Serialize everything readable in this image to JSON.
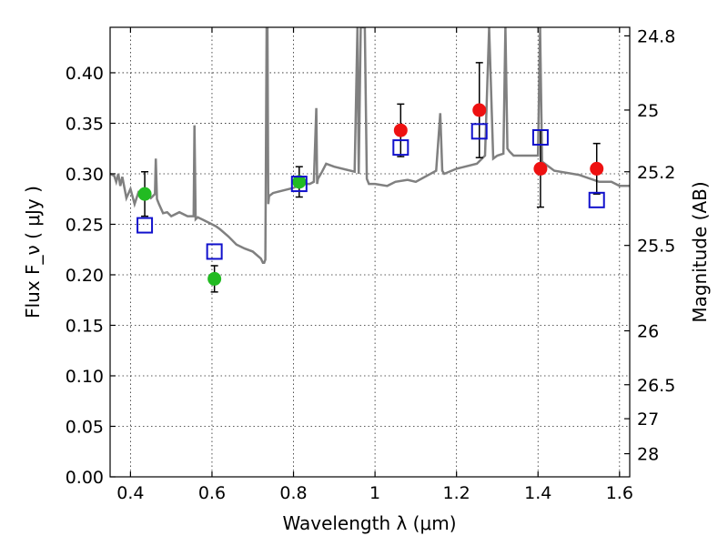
{
  "chart_data": {
    "type": "scatter",
    "xlabel": "Wavelength λ (μm)",
    "ylabel": "Flux F_ν ( μJy )",
    "y2label": "Magnitude (AB)",
    "xlim": [
      0.35,
      1.625
    ],
    "ylim": [
      0.0,
      0.445
    ],
    "grid": true,
    "x_ticks": [
      0.4,
      0.6,
      0.8,
      1.0,
      1.2,
      1.4,
      1.6
    ],
    "x_tick_labels": [
      "0.4",
      "0.6",
      "0.8",
      "1",
      "1.2",
      "1.4",
      "1.6"
    ],
    "y_ticks": [
      0.0,
      0.05,
      0.1,
      0.15,
      0.2,
      0.25,
      0.3,
      0.35,
      0.4
    ],
    "y_tick_labels": [
      "0.00",
      "0.05",
      "0.10",
      "0.15",
      "0.20",
      "0.25",
      "0.30",
      "0.35",
      "0.40"
    ],
    "mag_ticks": [
      24.8,
      25,
      25.2,
      25.5,
      26,
      26.5,
      27,
      28
    ],
    "mag_tick_labels": [
      "24.8",
      "25",
      "25.2",
      "25.5",
      "26",
      "26.5",
      "27",
      "28"
    ],
    "colors": {
      "sed": "#808080",
      "green_points": "#22bb22",
      "red_points": "#ee1111",
      "model_squares": "#1111cc",
      "errorbar": "#000000"
    },
    "series": [
      {
        "marker": "green-circle",
        "x": [
          0.435,
          0.606,
          0.814
        ],
        "y": [
          0.28,
          0.196,
          0.292
        ],
        "yerr": [
          0.022,
          0.013,
          0.015
        ]
      },
      {
        "marker": "red-circle",
        "x": [
          1.063,
          1.256,
          1.406,
          1.544
        ],
        "y": [
          0.343,
          0.363,
          0.305,
          0.305
        ],
        "yerr": [
          0.026,
          0.047,
          0.038,
          0.025
        ]
      },
      {
        "marker": "blue-open-square",
        "x": [
          0.435,
          0.606,
          0.814,
          1.063,
          1.256,
          1.406,
          1.544
        ],
        "y": [
          0.249,
          0.223,
          0.29,
          0.326,
          0.342,
          0.336,
          0.274
        ]
      }
    ],
    "sed_curve": {
      "x": [
        0.35,
        0.36,
        0.365,
        0.37,
        0.375,
        0.38,
        0.39,
        0.4,
        0.41,
        0.42,
        0.44,
        0.45,
        0.46,
        0.462,
        0.465,
        0.47,
        0.48,
        0.49,
        0.5,
        0.52,
        0.54,
        0.555,
        0.557,
        0.56,
        0.565,
        0.58,
        0.6,
        0.61,
        0.62,
        0.64,
        0.66,
        0.68,
        0.7,
        0.72,
        0.725,
        0.728,
        0.731,
        0.734,
        0.736,
        0.738,
        0.74,
        0.75,
        0.76,
        0.78,
        0.8,
        0.82,
        0.84,
        0.85,
        0.856,
        0.858,
        0.86,
        0.87,
        0.88,
        0.9,
        0.95,
        0.957,
        0.96,
        0.965,
        0.975,
        0.98,
        0.985,
        1.0,
        1.03,
        1.05,
        1.08,
        1.1,
        1.15,
        1.16,
        1.165,
        1.17,
        1.2,
        1.25,
        1.27,
        1.28,
        1.29,
        1.3,
        1.315,
        1.32,
        1.325,
        1.33,
        1.34,
        1.4,
        1.405,
        1.41,
        1.42,
        1.44,
        1.5,
        1.55,
        1.58,
        1.6,
        1.625
      ],
      "y": [
        0.3,
        0.298,
        0.292,
        0.3,
        0.288,
        0.297,
        0.276,
        0.285,
        0.27,
        0.282,
        0.281,
        0.276,
        0.28,
        0.315,
        0.275,
        0.27,
        0.261,
        0.262,
        0.258,
        0.262,
        0.258,
        0.258,
        0.348,
        0.255,
        0.257,
        0.254,
        0.25,
        0.248,
        0.245,
        0.238,
        0.23,
        0.226,
        0.223,
        0.216,
        0.212,
        0.212,
        0.215,
        0.445,
        0.445,
        0.27,
        0.278,
        0.281,
        0.282,
        0.284,
        0.286,
        0.29,
        0.29,
        0.292,
        0.365,
        0.29,
        0.295,
        0.302,
        0.31,
        0.307,
        0.302,
        0.445,
        0.3,
        0.445,
        0.445,
        0.295,
        0.29,
        0.29,
        0.288,
        0.292,
        0.294,
        0.292,
        0.303,
        0.36,
        0.303,
        0.3,
        0.305,
        0.31,
        0.318,
        0.445,
        0.315,
        0.318,
        0.32,
        0.445,
        0.325,
        0.322,
        0.318,
        0.318,
        0.445,
        0.312,
        0.309,
        0.303,
        0.299,
        0.292,
        0.292,
        0.288,
        0.288
      ]
    }
  }
}
